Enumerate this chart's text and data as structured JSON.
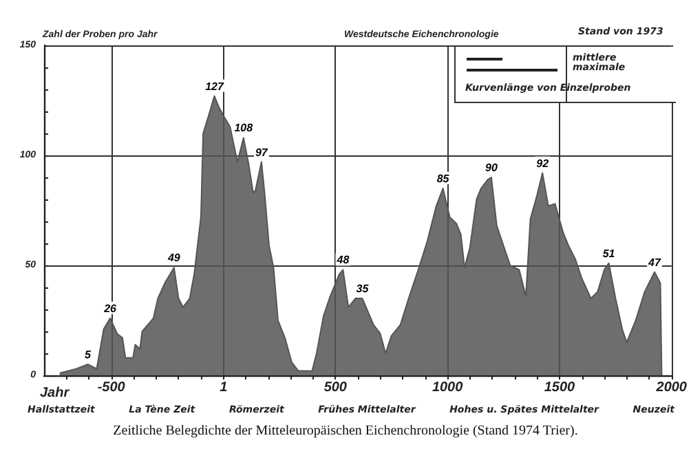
{
  "chart_data": {
    "type": "area",
    "title": "Westdeutsche Eichenchronologie",
    "ylabel": "Zahl der Proben pro Jahr",
    "xlabel": "Jahr",
    "annotations": [
      "Stand von 1973",
      "mittlere",
      "maximale",
      "Kurvenlänge von Einzelproben",
      "Hallstattzeit",
      "La Tène Zeit",
      "Römerzeit",
      "Frühes Mittelalter",
      "Hohes u. Spätes Mittelalter",
      "Neuzeit",
      "Zeitliche Belegdichte der Mitteleuropäischen Eichenchronologie (Stand 1974 Trier).",
      {
        "text": "5",
        "x": -605,
        "y": 5
      },
      {
        "text": "26",
        "x": -505,
        "y": 26
      },
      {
        "text": "49",
        "x": -220,
        "y": 49
      },
      {
        "text": "127",
        "x": -40,
        "y": 127
      },
      {
        "text": "108",
        "x": 90,
        "y": 108
      },
      {
        "text": "97",
        "x": 170,
        "y": 97
      },
      {
        "text": "48",
        "x": 534,
        "y": 48
      },
      {
        "text": "35",
        "x": 620,
        "y": 35
      },
      {
        "text": "85",
        "x": 980,
        "y": 85
      },
      {
        "text": "90",
        "x": 1196,
        "y": 90
      },
      {
        "text": "92",
        "x": 1424,
        "y": 92
      },
      {
        "text": "51",
        "x": 1720,
        "y": 51
      },
      {
        "text": "47",
        "x": 1924,
        "y": 47
      }
    ],
    "x": [
      -730,
      -656,
      -605,
      -565,
      -534,
      -505,
      -474,
      -450,
      -437,
      -403,
      -393,
      -372,
      -362,
      -312,
      -292,
      -261,
      -220,
      -200,
      -180,
      -150,
      -130,
      -100,
      -90,
      -60,
      -40,
      -20,
      1,
      30,
      63,
      90,
      113,
      133,
      143,
      170,
      184,
      204,
      224,
      244,
      275,
      305,
      335,
      396,
      416,
      447,
      477,
      517,
      534,
      558,
      590,
      620,
      670,
      700,
      724,
      750,
      790,
      830,
      870,
      910,
      950,
      980,
      1010,
      1040,
      1060,
      1076,
      1100,
      1130,
      1150,
      1180,
      1196,
      1220,
      1250,
      1280,
      1320,
      1350,
      1370,
      1400,
      1424,
      1450,
      1480,
      1516,
      1540,
      1570,
      1600,
      1640,
      1670,
      1700,
      1720,
      1750,
      1780,
      1800,
      1840,
      1880,
      1924,
      1950,
      1956
    ],
    "values": [
      1,
      3,
      5,
      3,
      21,
      26,
      19,
      17,
      8,
      8,
      14,
      12,
      20,
      26,
      35,
      42,
      49,
      35,
      31,
      35,
      46,
      72,
      110,
      120,
      127,
      122,
      118,
      113,
      97,
      108,
      96,
      83,
      84,
      97,
      83,
      59,
      49,
      25,
      17,
      6,
      2,
      2,
      10,
      27,
      36,
      46,
      48,
      31,
      35,
      35,
      23,
      19,
      10,
      18,
      23,
      36,
      48,
      61,
      77,
      85,
      72,
      69,
      64,
      49,
      58,
      80,
      85,
      89,
      90,
      68,
      59,
      50,
      48,
      36,
      71,
      82,
      92,
      77,
      78,
      65,
      59,
      53,
      44,
      35,
      38,
      48,
      51,
      35,
      21,
      15,
      25,
      38,
      47,
      42,
      0
    ],
    "color": "#555555",
    "marker": "none",
    "grid": true,
    "xlim": [
      -800,
      2000
    ],
    "xticks": [
      {
        "value": -700,
        "label": null
      },
      {
        "value": -600,
        "label": null
      },
      -500,
      {
        "value": -400,
        "label": null
      },
      {
        "value": -300,
        "label": null
      },
      {
        "value": -200,
        "label": null
      },
      {
        "value": -100,
        "label": null
      },
      1,
      {
        "value": 100,
        "label": null
      },
      {
        "value": 200,
        "label": null
      },
      {
        "value": 300,
        "label": null
      },
      {
        "value": 400,
        "label": null
      },
      500,
      {
        "value": 600,
        "label": null
      },
      {
        "value": 700,
        "label": null
      },
      {
        "value": 800,
        "label": null
      },
      {
        "value": 900,
        "label": null
      },
      1000,
      {
        "value": 1100,
        "label": null
      },
      {
        "value": 1200,
        "label": null
      },
      {
        "value": 1300,
        "label": null
      },
      {
        "value": 1400,
        "label": null
      },
      1500,
      {
        "value": 1600,
        "label": null
      },
      {
        "value": 1700,
        "label": null
      },
      {
        "value": 1800,
        "label": null
      },
      {
        "value": 1900,
        "label": null
      },
      2000
    ],
    "ylim": [
      0,
      150
    ],
    "yticks": [
      0,
      {
        "value": 10,
        "label": null
      },
      {
        "value": 20,
        "label": null
      },
      {
        "value": 30,
        "label": null
      },
      {
        "value": 40,
        "label": null
      },
      50,
      {
        "value": 60,
        "label": null
      },
      {
        "value": 70,
        "label": null
      },
      {
        "value": 80,
        "label": null
      },
      {
        "value": 90,
        "label": null
      },
      100,
      {
        "value": 110,
        "label": null
      },
      {
        "value": 120,
        "label": null
      },
      {
        "value": 130,
        "label": null
      },
      {
        "value": 140,
        "label": null
      },
      150
    ]
  }
}
